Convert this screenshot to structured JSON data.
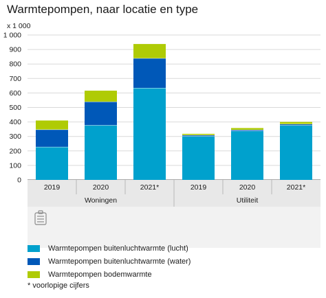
{
  "title": "Warmtepompen, naar locatie en type",
  "unit_label": "x 1 000",
  "footnote": "* voorlopige cijfers",
  "chart_data": {
    "type": "bar",
    "stacked": true,
    "title": "Warmtepompen, naar locatie en type",
    "ylabel": "x 1 000",
    "ylim": [
      0,
      1000
    ],
    "yticks": [
      "0",
      "100",
      "200",
      "300",
      "400",
      "500",
      "600",
      "700",
      "800",
      "900",
      "1 000"
    ],
    "grid": true,
    "legend_position": "bottom",
    "categories": [
      "2019",
      "2020",
      "2021*",
      "2019",
      "2020",
      "2021*"
    ],
    "groups": [
      {
        "label": "Woningen",
        "categories": [
          0,
          1,
          2
        ]
      },
      {
        "label": "Utiliteit",
        "categories": [
          3,
          4,
          5
        ]
      }
    ],
    "series": [
      {
        "name": "Warmtepompen buitenluchtwarmte (lucht)",
        "color": "#00a1cd",
        "values": [
          228,
          378,
          635,
          302,
          338,
          378
        ]
      },
      {
        "name": "Warmtepompen buitenluchtwarmte (water)",
        "color": "#0058b8",
        "values": [
          120,
          162,
          205,
          8,
          8,
          8
        ]
      },
      {
        "name": "Warmtepompen bodemwarmte",
        "color": "#afcb05",
        "values": [
          62,
          76,
          98,
          8,
          12,
          14
        ]
      }
    ]
  }
}
